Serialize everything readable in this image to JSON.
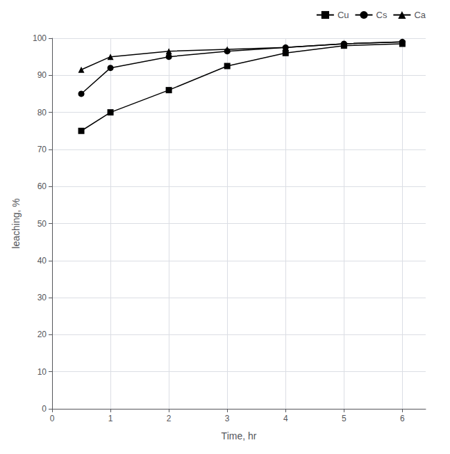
{
  "chart_data": {
    "type": "line",
    "x": [
      0.5,
      1,
      2,
      3,
      4,
      5,
      6
    ],
    "series": [
      {
        "name": "Cu",
        "color": "#000000",
        "marker": "square",
        "values": [
          75,
          80,
          86,
          92.5,
          96,
          98,
          98.5
        ]
      },
      {
        "name": "Cs",
        "color": "#000000",
        "marker": "circle",
        "values": [
          85,
          92,
          95,
          96.5,
          97.5,
          98.5,
          99
        ]
      },
      {
        "name": "Ca",
        "color": "#000000",
        "marker": "triangle",
        "values": [
          91.5,
          95,
          96.5,
          97,
          97.5,
          98.5,
          99
        ]
      }
    ],
    "xlabel": "Time, hr",
    "ylabel": "leaching, %",
    "xlim": [
      0,
      6.4
    ],
    "ylim": [
      0,
      100
    ],
    "xticks": [
      0,
      1,
      2,
      3,
      4,
      5,
      6
    ],
    "yticks": [
      0,
      10,
      20,
      30,
      40,
      50,
      60,
      70,
      80,
      90,
      100
    ],
    "grid": true,
    "legend": "upper right"
  }
}
